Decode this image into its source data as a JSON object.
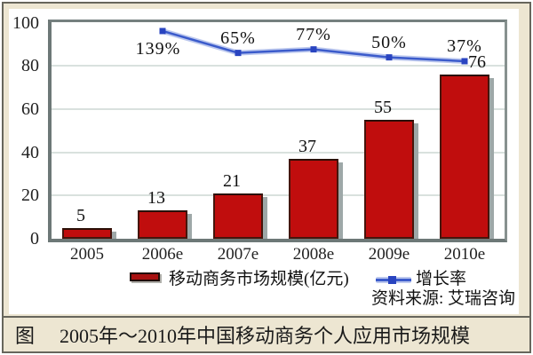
{
  "chart_data": {
    "type": "bar+line",
    "categories": [
      "2005",
      "2006e",
      "2007e",
      "2008e",
      "2009e",
      "2010e"
    ],
    "series": [
      {
        "name": "移动商务市场规模(亿元)",
        "type": "bar",
        "values": [
          5,
          13,
          21,
          37,
          55,
          76
        ]
      },
      {
        "name": "增长率",
        "type": "line",
        "values": [
          null,
          139,
          65,
          77,
          50,
          37
        ],
        "labels": [
          "",
          "139%",
          "65%",
          "77%",
          "50%",
          "37%"
        ]
      }
    ],
    "y_axis": {
      "ticks": [
        0,
        20,
        40,
        60,
        80,
        100
      ],
      "range": [
        0,
        100
      ]
    },
    "grid": true,
    "legend_position": "bottom",
    "title": ""
  },
  "legend": {
    "bar_label": "移动商务市场规模(亿元)",
    "line_label": "增长率"
  },
  "source_note": "资料来源: 艾瑞咨询",
  "caption": {
    "prefix": "图",
    "text": "2005年～2010年中国移动商务个人应用市场规模"
  },
  "colors": {
    "bar_fill": "#c00d0d",
    "bar_border": "#46150c",
    "bar_shadow": "#9ea8a8",
    "line": "#3b5bcb",
    "line_halo": "#bcc8ee",
    "marker": "#2944c0",
    "plot_border": "#75807f",
    "gridline": "#d9e1de",
    "frame_bg": "#ede6d2",
    "frame_border": "#67665c"
  }
}
